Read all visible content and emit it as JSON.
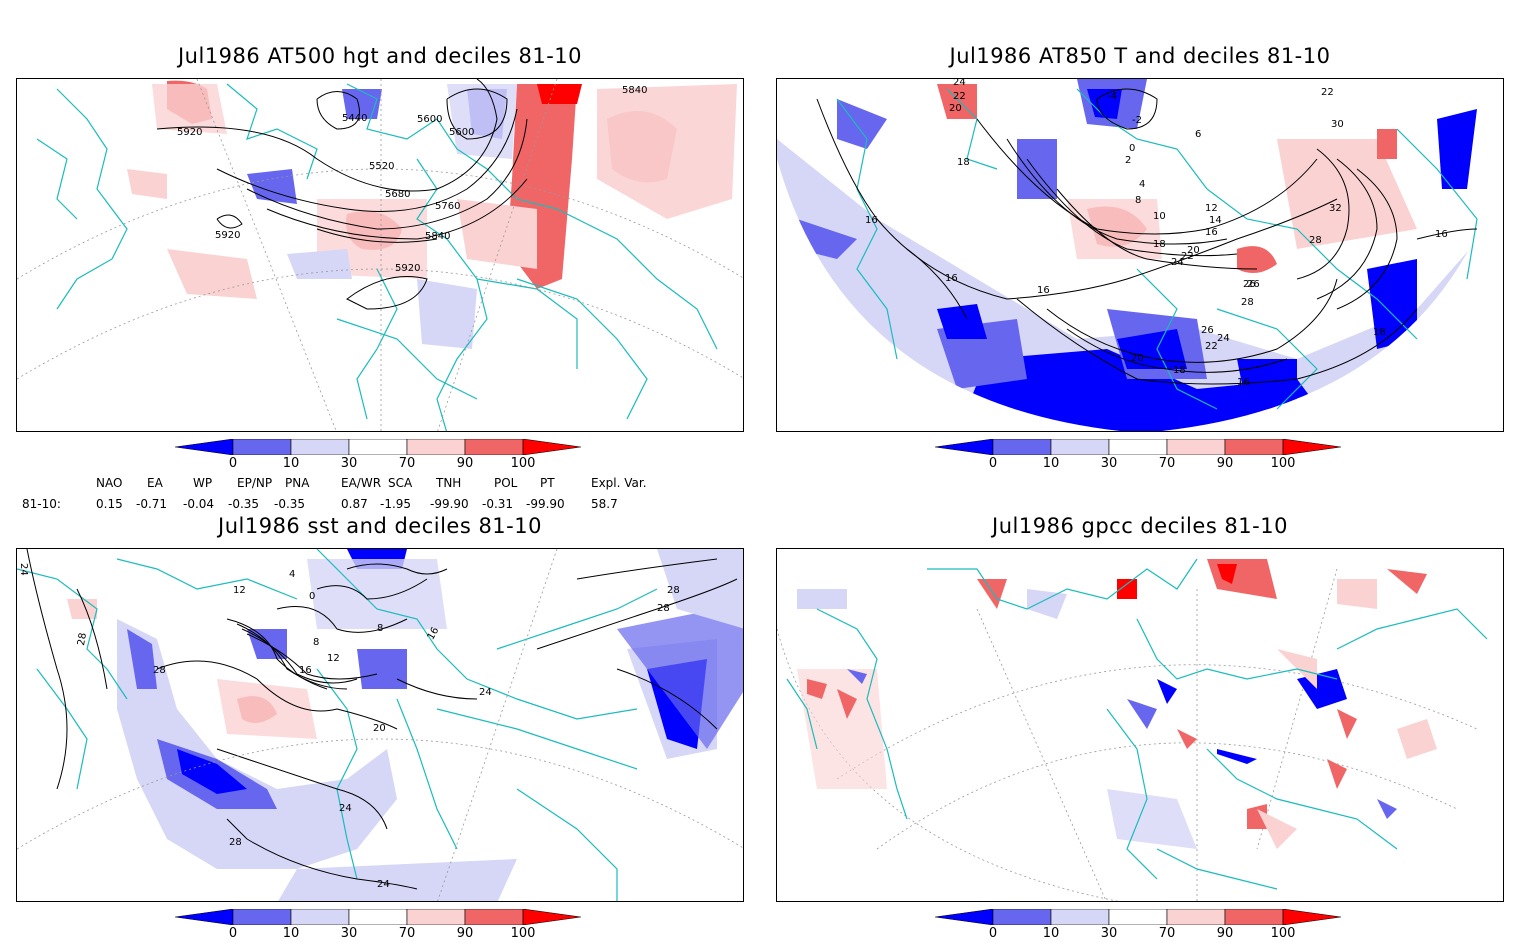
{
  "panels": [
    {
      "title": "Jul1986 AT500 hgt and deciles 81-10",
      "contour_labels": [
        "5920",
        "5440",
        "5600",
        "5600",
        "5840",
        "5520",
        "5680",
        "5760",
        "5840",
        "5920",
        "5920"
      ]
    },
    {
      "title": "Jul1986 AT850 T and deciles 81-10",
      "contour_labels": [
        "24",
        "22",
        "20",
        "18",
        "-4",
        "-2",
        "6",
        "0",
        "2",
        "4",
        "8",
        "10",
        "12",
        "14",
        "16",
        "18",
        "20",
        "22",
        "24",
        "26",
        "28",
        "30",
        "32",
        "28",
        "26",
        "24",
        "22",
        "20",
        "18",
        "16",
        "16",
        "16",
        "16",
        "18",
        "16",
        "26",
        "22"
      ]
    },
    {
      "title": "Jul1986 sst and deciles 81-10",
      "contour_labels": [
        "24",
        "28",
        "12",
        "4",
        "0",
        "8",
        "12",
        "16",
        "20",
        "24",
        "28",
        "28",
        "28",
        "24",
        "28",
        "24",
        "8",
        "16"
      ]
    },
    {
      "title": "Jul1986 gpcc deciles 81-10",
      "contour_labels": []
    }
  ],
  "colorbar": {
    "ticks": [
      "0",
      "10",
      "30",
      "70",
      "90",
      "100"
    ],
    "colors": [
      "#0000ff",
      "#6666ee",
      "#d6d6f7",
      "#ffffff",
      "#fad2d2",
      "#f06666",
      "#ff0000"
    ]
  },
  "indices": {
    "headers": [
      "NAO",
      "EA",
      "WP",
      "EP/NP",
      "PNA",
      "EA/WR",
      "SCA",
      "TNH",
      "POL",
      "PT",
      "Expl. Var."
    ],
    "row_label": "81-10:",
    "values": [
      "0.15",
      "-0.71",
      "-0.04",
      "-0.35",
      "-0.35",
      "0.87",
      "-1.95",
      "-99.90",
      "-0.31",
      "-99.90",
      "58.7"
    ]
  },
  "map_colors": {
    "coast": "#1bbcbc",
    "grid": "#999999"
  }
}
